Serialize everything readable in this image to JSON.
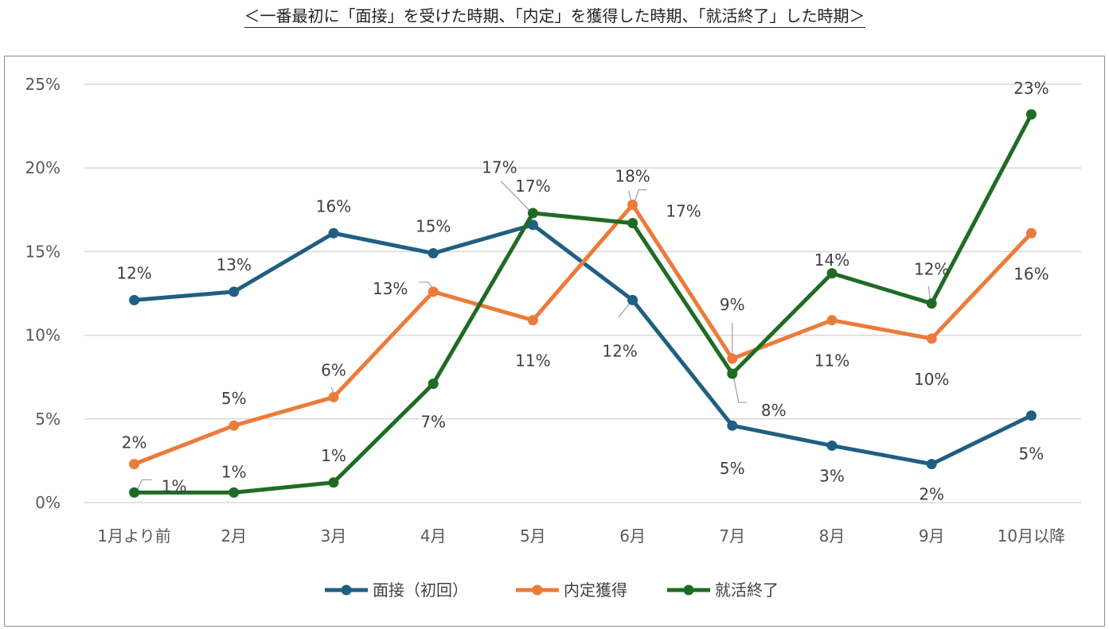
{
  "chart_data": {
    "type": "line",
    "title": "＜一番最初に「面接」を受けた時期、「内定」を獲得した時期、「就活終了」した時期＞",
    "xlabel": "",
    "ylabel": "",
    "categories": [
      "1月より前",
      "2月",
      "3月",
      "4月",
      "5月",
      "6月",
      "7月",
      "8月",
      "9月",
      "10月以降"
    ],
    "ylim": [
      0,
      25
    ],
    "yticks": [
      0,
      5,
      10,
      15,
      20,
      25
    ],
    "ytick_labels": [
      "0%",
      "5%",
      "10%",
      "15%",
      "20%",
      "25%"
    ],
    "grid": true,
    "legend_position": "bottom",
    "series": [
      {
        "name": "面接（初回）",
        "color": "#1f5f82",
        "values": [
          12.1,
          12.6,
          16.1,
          14.9,
          16.6,
          12.1,
          4.6,
          3.4,
          2.3,
          5.2
        ],
        "labels": [
          "12%",
          "13%",
          "16%",
          "15%",
          "17%",
          "12%",
          "5%",
          "3%",
          "2%",
          "5%"
        ]
      },
      {
        "name": "内定獲得",
        "color": "#eb7b3a",
        "values": [
          2.3,
          4.6,
          6.3,
          12.6,
          10.9,
          17.8,
          8.6,
          10.9,
          9.8,
          16.1
        ],
        "labels": [
          "2%",
          "5%",
          "6%",
          "13%",
          "11%",
          "18%",
          "9%",
          "11%",
          "10%",
          "16%"
        ]
      },
      {
        "name": "就活終了",
        "color": "#1f6b25",
        "values": [
          0.6,
          0.6,
          1.2,
          7.1,
          17.3,
          16.7,
          7.7,
          13.7,
          11.9,
          23.2
        ],
        "labels": [
          "1%",
          "1%",
          "1%",
          "7%",
          "17%",
          "17%",
          "8%",
          "14%",
          "12%",
          "23%"
        ]
      }
    ]
  }
}
